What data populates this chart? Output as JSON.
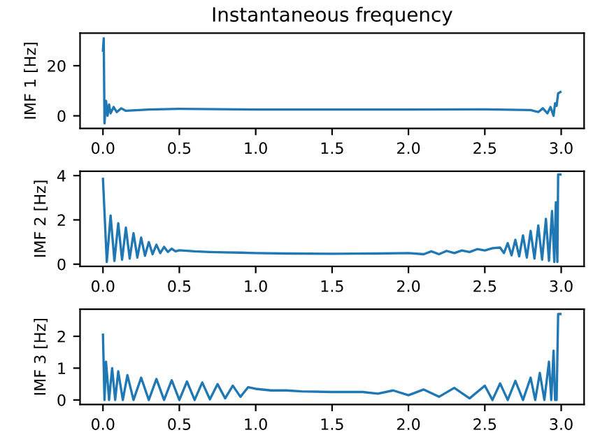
{
  "chart_data": [
    {
      "type": "line",
      "title": "Instantaneous frequency",
      "ylabel": "IMF 1 [Hz]",
      "series": [
        {
          "color": "#1f77b4",
          "x": [
            0,
            0.005,
            0.01,
            0.02,
            0.03,
            0.04,
            0.05,
            0.07,
            0.09,
            0.12,
            0.15,
            0.3,
            0.5,
            1,
            1.5,
            2,
            2.5,
            2.8,
            2.85,
            2.88,
            2.91,
            2.93,
            2.95,
            2.96,
            2.97,
            2.98,
            2.995
          ],
          "values": [
            26,
            31,
            -3,
            6,
            0,
            4.5,
            1,
            3.5,
            1.5,
            3,
            2,
            2.5,
            2.8,
            2.5,
            2.5,
            2.5,
            2.6,
            2.3,
            1.5,
            3,
            1,
            3.5,
            0,
            5,
            4,
            9,
            9.5
          ]
        }
      ],
      "xlim": [
        -0.15,
        3.15
      ],
      "xticks": [
        {
          "value": 0,
          "label": "0.0"
        },
        {
          "value": 0.5,
          "label": "0.5"
        },
        {
          "value": 1,
          "label": "1.0"
        },
        {
          "value": 1.5,
          "label": "1.5"
        },
        {
          "value": 2,
          "label": "2.0"
        },
        {
          "value": 2.5,
          "label": "2.5"
        },
        {
          "value": 3,
          "label": "3.0"
        }
      ],
      "ylim": [
        -5,
        33
      ],
      "yticks": [
        0,
        20
      ],
      "grid": false,
      "legend": false
    },
    {
      "type": "line",
      "ylabel": "IMF 2 [Hz]",
      "series": [
        {
          "color": "#1f77b4",
          "x": [
            0,
            0.025,
            0.05,
            0.075,
            0.1,
            0.125,
            0.15,
            0.175,
            0.2,
            0.225,
            0.25,
            0.275,
            0.3,
            0.325,
            0.35,
            0.375,
            0.4,
            0.425,
            0.45,
            0.475,
            0.5,
            0.6,
            0.7,
            0.8,
            0.9,
            1.0,
            1.2,
            1.5,
            1.8,
            2.0,
            2.1,
            2.15,
            2.2,
            2.25,
            2.3,
            2.35,
            2.4,
            2.45,
            2.5,
            2.55,
            2.6,
            2.625,
            2.65,
            2.675,
            2.7,
            2.725,
            2.75,
            2.775,
            2.8,
            2.825,
            2.85,
            2.875,
            2.9,
            2.92,
            2.94,
            2.955,
            2.965,
            2.975,
            2.98,
            2.995
          ],
          "values": [
            3.85,
            0.1,
            2.2,
            0.15,
            1.85,
            0.2,
            1.65,
            0.25,
            1.4,
            0.3,
            1.2,
            0.38,
            1.0,
            0.45,
            0.88,
            0.5,
            0.78,
            0.55,
            0.7,
            0.58,
            0.63,
            0.58,
            0.55,
            0.53,
            0.52,
            0.5,
            0.48,
            0.47,
            0.48,
            0.5,
            0.45,
            0.58,
            0.45,
            0.6,
            0.5,
            0.62,
            0.55,
            0.68,
            0.62,
            0.72,
            0.75,
            0.5,
            0.95,
            0.4,
            1.1,
            0.35,
            1.3,
            0.3,
            1.5,
            0.25,
            1.75,
            0.2,
            2.05,
            0.15,
            2.4,
            0.1,
            2.8,
            0.1,
            4.05,
            4.05
          ]
        }
      ],
      "xlim": [
        -0.15,
        3.15
      ],
      "xticks": [
        {
          "value": 0,
          "label": "0.0"
        },
        {
          "value": 0.5,
          "label": "0.5"
        },
        {
          "value": 1,
          "label": "1.0"
        },
        {
          "value": 1.5,
          "label": "1.5"
        },
        {
          "value": 2,
          "label": "2.0"
        },
        {
          "value": 2.5,
          "label": "2.5"
        },
        {
          "value": 3,
          "label": "3.0"
        }
      ],
      "ylim": [
        -0.1,
        4.2
      ],
      "yticks": [
        0,
        2,
        4
      ],
      "grid": false,
      "legend": false
    },
    {
      "type": "line",
      "ylabel": "IMF 3 [Hz]",
      "series": [
        {
          "color": "#1f77b4",
          "x": [
            0,
            0.01,
            0.02,
            0.04,
            0.06,
            0.08,
            0.1,
            0.13,
            0.16,
            0.2,
            0.25,
            0.3,
            0.35,
            0.4,
            0.45,
            0.5,
            0.55,
            0.6,
            0.65,
            0.7,
            0.75,
            0.8,
            0.85,
            0.9,
            0.95,
            1.0,
            1.1,
            1.2,
            1.3,
            1.5,
            1.7,
            1.8,
            1.9,
            2.0,
            2.1,
            2.2,
            2.3,
            2.4,
            2.5,
            2.55,
            2.6,
            2.65,
            2.7,
            2.75,
            2.8,
            2.83,
            2.86,
            2.89,
            2.92,
            2.935,
            2.95,
            2.96,
            2.97,
            2.98,
            2.995
          ],
          "values": [
            2.05,
            0,
            1.2,
            0,
            1.0,
            0,
            0.9,
            0,
            0.78,
            0,
            0.7,
            0,
            0.66,
            0,
            0.62,
            0,
            0.58,
            0,
            0.55,
            0.02,
            0.5,
            0.05,
            0.45,
            0.1,
            0.4,
            0.35,
            0.3,
            0.3,
            0.27,
            0.25,
            0.25,
            0.2,
            0.3,
            0.15,
            0.33,
            0.1,
            0.38,
            0.05,
            0.45,
            0,
            0.52,
            0,
            0.6,
            0,
            0.7,
            0,
            0.85,
            0,
            1.2,
            0,
            1.55,
            0,
            0,
            2.7,
            2.7
          ]
        }
      ],
      "xlim": [
        -0.15,
        3.15
      ],
      "xticks": [
        {
          "value": 0,
          "label": "0.0"
        },
        {
          "value": 0.5,
          "label": "0.5"
        },
        {
          "value": 1,
          "label": "1.0"
        },
        {
          "value": 1.5,
          "label": "1.5"
        },
        {
          "value": 2,
          "label": "2.0"
        },
        {
          "value": 2.5,
          "label": "2.5"
        },
        {
          "value": 3,
          "label": "3.0"
        }
      ],
      "ylim": [
        -0.14,
        2.85
      ],
      "yticks": [
        0,
        1,
        2
      ],
      "grid": false,
      "legend": false
    }
  ]
}
